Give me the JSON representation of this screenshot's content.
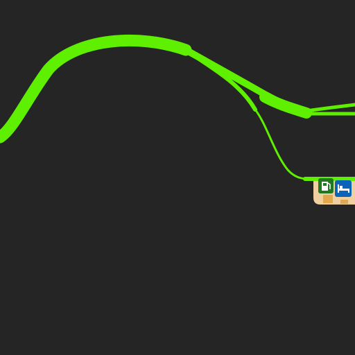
{
  "map": {
    "background_color": "#252525",
    "road_color": "#5fef00",
    "service_area_color": "#f0cfa0",
    "building_color": "#e0a94d",
    "fuel_icon_color": "#1f7a1f",
    "lodging_icon_color": "#0b64b7"
  },
  "pois": [
    {
      "icon": "fuel-icon",
      "label": "fuel station"
    },
    {
      "icon": "bed-icon",
      "label": "lodging"
    }
  ]
}
